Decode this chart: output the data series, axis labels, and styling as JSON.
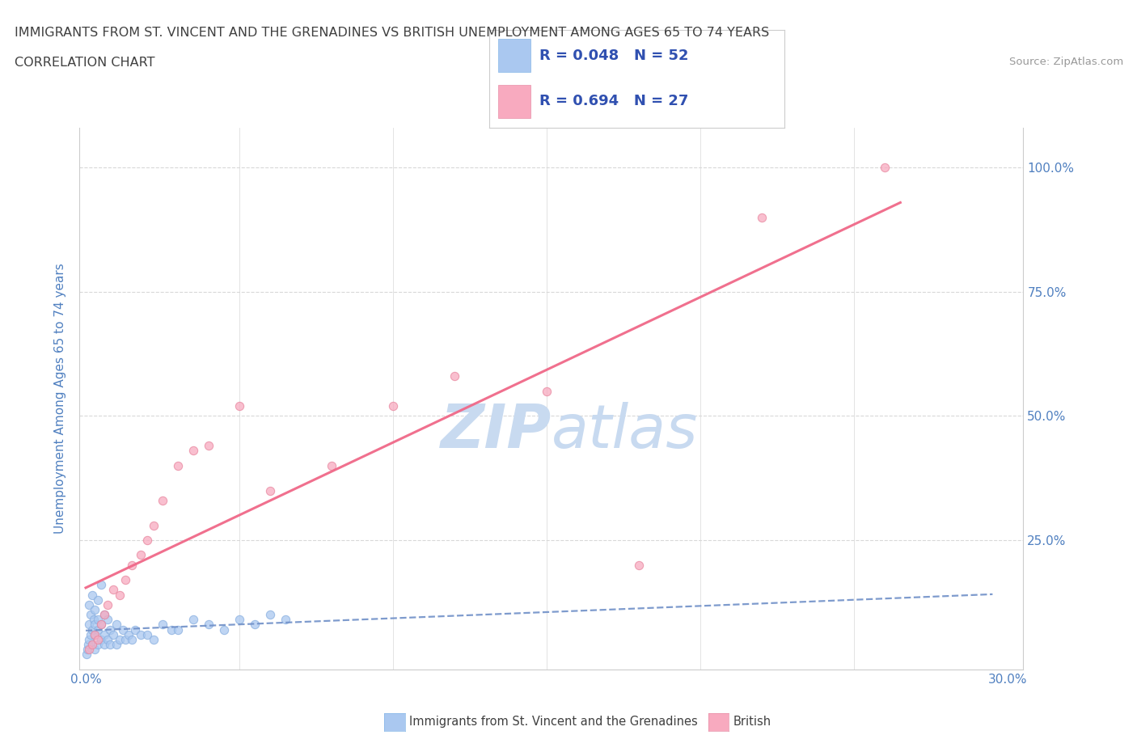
{
  "title_line1": "IMMIGRANTS FROM ST. VINCENT AND THE GRENADINES VS BRITISH UNEMPLOYMENT AMONG AGES 65 TO 74 YEARS",
  "title_line2": "CORRELATION CHART",
  "source_text": "Source: ZipAtlas.com",
  "ylabel": "Unemployment Among Ages 65 to 74 years",
  "xlim": [
    -0.002,
    0.305
  ],
  "ylim": [
    -0.01,
    1.08
  ],
  "x_ticks": [
    0.0,
    0.05,
    0.1,
    0.15,
    0.2,
    0.25,
    0.3
  ],
  "x_tick_labels": [
    "0.0%",
    "",
    "",
    "",
    "",
    "",
    "30.0%"
  ],
  "y_ticks": [
    0.0,
    0.25,
    0.5,
    0.75,
    1.0
  ],
  "y_tick_labels_right": [
    "",
    "25.0%",
    "50.0%",
    "75.0%",
    "100.0%"
  ],
  "R_blue": 0.048,
  "N_blue": 52,
  "R_pink": 0.694,
  "N_pink": 27,
  "blue_color": "#aac8f0",
  "pink_color": "#f8aabf",
  "blue_line_color": "#7090c8",
  "pink_line_color": "#f06888",
  "watermark_color": "#c8daf0",
  "grid_color": "#d8d8d8",
  "title_color": "#404040",
  "tick_label_color": "#5080c0",
  "legend_R_color": "#3050b0",
  "legend_border_color": "#cccccc",
  "blue_scatter_x": [
    0.0003,
    0.0005,
    0.0007,
    0.001,
    0.001,
    0.001,
    0.0015,
    0.0015,
    0.002,
    0.002,
    0.002,
    0.0025,
    0.003,
    0.003,
    0.003,
    0.003,
    0.004,
    0.004,
    0.004,
    0.004,
    0.005,
    0.005,
    0.005,
    0.006,
    0.006,
    0.006,
    0.007,
    0.007,
    0.008,
    0.008,
    0.009,
    0.01,
    0.01,
    0.011,
    0.012,
    0.013,
    0.014,
    0.015,
    0.016,
    0.018,
    0.02,
    0.022,
    0.025,
    0.028,
    0.03,
    0.035,
    0.04,
    0.045,
    0.05,
    0.055,
    0.06,
    0.065
  ],
  "blue_scatter_y": [
    0.02,
    0.03,
    0.04,
    0.05,
    0.08,
    0.12,
    0.06,
    0.1,
    0.04,
    0.07,
    0.14,
    0.09,
    0.03,
    0.06,
    0.08,
    0.11,
    0.04,
    0.07,
    0.09,
    0.13,
    0.05,
    0.08,
    0.16,
    0.04,
    0.06,
    0.1,
    0.05,
    0.09,
    0.04,
    0.07,
    0.06,
    0.04,
    0.08,
    0.05,
    0.07,
    0.05,
    0.06,
    0.05,
    0.07,
    0.06,
    0.06,
    0.05,
    0.08,
    0.07,
    0.07,
    0.09,
    0.08,
    0.07,
    0.09,
    0.08,
    0.1,
    0.09
  ],
  "pink_scatter_x": [
    0.001,
    0.002,
    0.003,
    0.004,
    0.005,
    0.006,
    0.007,
    0.009,
    0.011,
    0.013,
    0.015,
    0.018,
    0.02,
    0.022,
    0.025,
    0.03,
    0.035,
    0.04,
    0.05,
    0.06,
    0.08,
    0.1,
    0.12,
    0.15,
    0.18,
    0.22,
    0.26
  ],
  "pink_scatter_y": [
    0.03,
    0.04,
    0.06,
    0.05,
    0.08,
    0.1,
    0.12,
    0.15,
    0.14,
    0.17,
    0.2,
    0.22,
    0.25,
    0.28,
    0.33,
    0.4,
    0.43,
    0.44,
    0.52,
    0.35,
    0.4,
    0.52,
    0.58,
    0.55,
    0.2,
    0.9,
    1.0
  ]
}
